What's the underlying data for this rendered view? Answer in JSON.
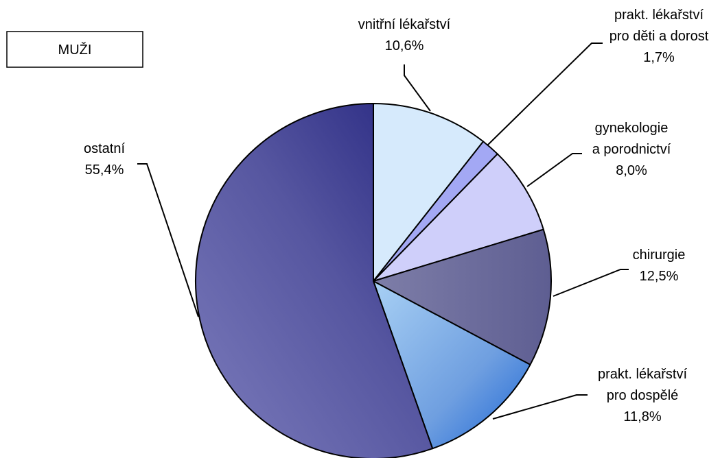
{
  "legend_box": {
    "text": "MUŽI"
  },
  "chart_data": {
    "type": "pie",
    "title": "",
    "start_angle_deg": 0,
    "direction": "clockwise",
    "slices": [
      {
        "label": [
          "vnitřní lékařství"
        ],
        "value": 10.6,
        "value_label": "10,6%",
        "color": "#d6eafc"
      },
      {
        "label": [
          "prakt. lékařství",
          "pro děti a dorost"
        ],
        "value": 1.7,
        "value_label": "1,7%",
        "color": "#a3a8f4"
      },
      {
        "label": [
          "gynekologie",
          "a porodnictví"
        ],
        "value": 8.0,
        "value_label": "8,0%",
        "color": "#cfcffa"
      },
      {
        "label": [
          "chirurgie"
        ],
        "value": 12.5,
        "value_label": "12,5%",
        "color": "#6a6a9c"
      },
      {
        "label": [
          "prakt. lékařství",
          "pro dospělé"
        ],
        "value": 11.8,
        "value_label": "11,8%",
        "color": "#6f9fe0"
      },
      {
        "label": [
          "ostatní"
        ],
        "value": 55.4,
        "value_label": "55,4%",
        "color": "#5a5aa0"
      }
    ]
  }
}
